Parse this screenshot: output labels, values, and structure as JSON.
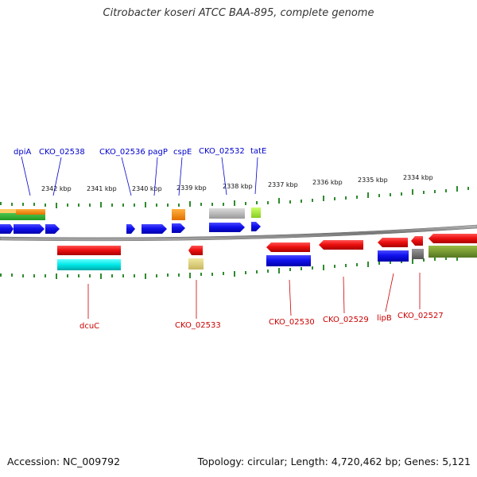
{
  "title": "Citrobacter koseri ATCC BAA-895, complete genome",
  "accession": "Accession: NC_009792",
  "topology": "Topology: circular; Length: 4,720,462 bp; Genes: 5,121",
  "colors": {
    "forward_label": "#0000cc",
    "reverse_label": "#cc0000",
    "backbone": "#888888",
    "tick": "#2e8b2e"
  },
  "scale_labels": [
    "2342 kbp",
    "2341 kbp",
    "2340 kbp",
    "2339 kbp",
    "2338 kbp",
    "2337 kbp",
    "2336 kbp",
    "2335 kbp",
    "2334 kbp"
  ],
  "forward_labels": [
    "dpiA",
    "CKO_02538",
    "CKO_02536",
    "pagP",
    "cspE",
    "CKO_02532",
    "tatE"
  ],
  "reverse_labels": [
    "dcuC",
    "CKO_02533",
    "CKO_02530",
    "CKO_02529",
    "lipB",
    "CKO_02527"
  ]
}
